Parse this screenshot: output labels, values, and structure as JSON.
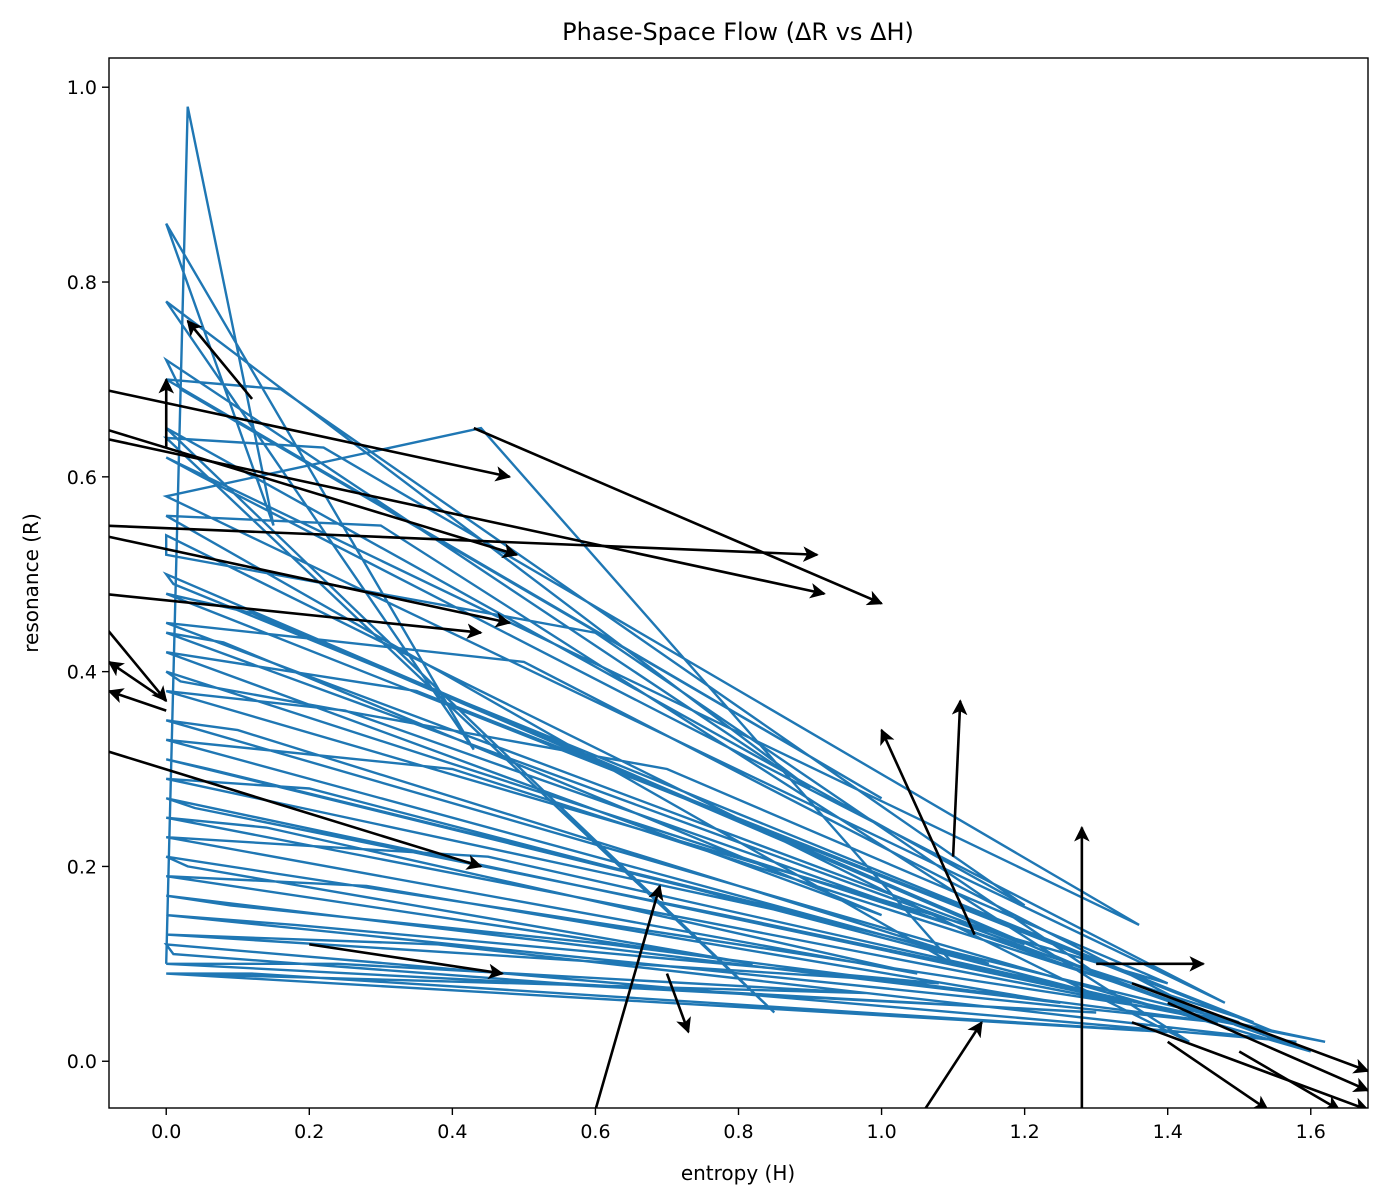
{
  "chart_data": {
    "type": "line",
    "title": "Phase-Space Flow (ΔR vs ΔH)",
    "xlabel": "entropy (H)",
    "ylabel": "resonance (R)",
    "xlim": [
      -0.08,
      1.68
    ],
    "ylim": [
      -0.048,
      1.03
    ],
    "xticks": [
      0.0,
      0.2,
      0.4,
      0.6,
      0.8,
      1.0,
      1.2,
      1.4,
      1.6
    ],
    "xtick_labels": [
      "0.0",
      "0.2",
      "0.4",
      "0.6",
      "0.8",
      "1.0",
      "1.2",
      "1.4",
      "1.6"
    ],
    "yticks": [
      0.0,
      0.2,
      0.4,
      0.6,
      0.8,
      1.0
    ],
    "ytick_labels": [
      "0.0",
      "0.2",
      "0.4",
      "0.6",
      "0.8",
      "1.0"
    ],
    "grid": false,
    "series_color": "#1f77b4",
    "arrow_color": "#000000",
    "series": [
      {
        "x": [
          0.0,
          0.03,
          0.15,
          0.0,
          0.43,
          0.0,
          0.9,
          0.0,
          0.02,
          1.0,
          0.0,
          0.16,
          1.2,
          0.0,
          0.85,
          0.0,
          0.22,
          1.36,
          0.0,
          0.05,
          1.48,
          0.0,
          0.44,
          1.1,
          0.0,
          0.3,
          1.43,
          0.0,
          0.0,
          0.6,
          1.3,
          0.0,
          0.01,
          1.55,
          0.0,
          0.12,
          1.2,
          0.0,
          0.5,
          1.45,
          0.0,
          0.08,
          1.0,
          0.0,
          0.35,
          1.52,
          0.0,
          0.02,
          0.7,
          1.4,
          0.0,
          0.25,
          1.6,
          0.0,
          0.1,
          1.15,
          0.0,
          0.4,
          1.5,
          0.0,
          0.06,
          0.95,
          0.0,
          0.2,
          1.35,
          0.0,
          0.04,
          0.78,
          1.62,
          0.0,
          0.14,
          1.05,
          0.0,
          0.45,
          1.42,
          0.0,
          0.03,
          0.82,
          0.0,
          0.28,
          1.25,
          0.0,
          0.09,
          0.62,
          1.47,
          0.0,
          0.18,
          1.08,
          0.0,
          0.38,
          1.58,
          0.0,
          0.01,
          0.55,
          1.3,
          0.0,
          0.24,
          0.98,
          0.0,
          0.12,
          1.4,
          0.0
        ],
        "y": [
          0.1,
          0.98,
          0.55,
          0.86,
          0.32,
          0.78,
          0.28,
          0.72,
          0.69,
          0.27,
          0.7,
          0.69,
          0.16,
          0.65,
          0.05,
          0.64,
          0.63,
          0.14,
          0.62,
          0.6,
          0.06,
          0.58,
          0.65,
          0.1,
          0.56,
          0.55,
          0.02,
          0.54,
          0.52,
          0.44,
          0.09,
          0.5,
          0.49,
          0.03,
          0.48,
          0.46,
          0.12,
          0.45,
          0.41,
          0.05,
          0.44,
          0.43,
          0.15,
          0.42,
          0.38,
          0.04,
          0.4,
          0.39,
          0.3,
          0.08,
          0.38,
          0.36,
          0.01,
          0.35,
          0.34,
          0.1,
          0.33,
          0.3,
          0.04,
          0.31,
          0.3,
          0.14,
          0.29,
          0.28,
          0.06,
          0.27,
          0.26,
          0.15,
          0.02,
          0.25,
          0.24,
          0.09,
          0.23,
          0.21,
          0.05,
          0.21,
          0.2,
          0.1,
          0.19,
          0.18,
          0.06,
          0.17,
          0.16,
          0.12,
          0.04,
          0.15,
          0.14,
          0.08,
          0.13,
          0.12,
          0.02,
          0.12,
          0.11,
          0.08,
          0.05,
          0.1,
          0.1,
          0.07,
          0.09,
          0.09,
          0.03,
          0.09
        ]
      }
    ],
    "arrows": [
      {
        "x0": -0.09,
        "y0": 0.69,
        "x1": 0.48,
        "y1": 0.6
      },
      {
        "x0": -0.09,
        "y0": 0.65,
        "x1": 0.49,
        "y1": 0.52
      },
      {
        "x0": -0.09,
        "y0": 0.64,
        "x1": 0.92,
        "y1": 0.48
      },
      {
        "x0": -0.09,
        "y0": 0.55,
        "x1": 0.91,
        "y1": 0.52
      },
      {
        "x0": -0.09,
        "y0": 0.54,
        "x1": 0.48,
        "y1": 0.45
      },
      {
        "x0": 0.43,
        "y0": 0.65,
        "x1": 1.0,
        "y1": 0.47
      },
      {
        "x0": -0.09,
        "y0": 0.48,
        "x1": 0.44,
        "y1": 0.44
      },
      {
        "x0": -0.09,
        "y0": 0.45,
        "x1": 0.0,
        "y1": 0.37
      },
      {
        "x0": 0.0,
        "y0": 0.37,
        "x1": -0.08,
        "y1": 0.41
      },
      {
        "x0": 0.0,
        "y0": 0.36,
        "x1": -0.08,
        "y1": 0.38
      },
      {
        "x0": -0.09,
        "y0": 0.32,
        "x1": 0.44,
        "y1": 0.2
      },
      {
        "x0": 0.12,
        "y0": 0.68,
        "x1": 0.03,
        "y1": 0.76
      },
      {
        "x0": 0.0,
        "y0": 0.63,
        "x1": 0.0,
        "y1": 0.7
      },
      {
        "x0": 1.13,
        "y0": 0.13,
        "x1": 1.0,
        "y1": 0.34
      },
      {
        "x0": 1.1,
        "y0": 0.21,
        "x1": 1.11,
        "y1": 0.37
      },
      {
        "x0": 1.28,
        "y0": -0.05,
        "x1": 1.28,
        "y1": 0.24
      },
      {
        "x0": 0.6,
        "y0": -0.05,
        "x1": 0.69,
        "y1": 0.18
      },
      {
        "x0": 1.06,
        "y0": -0.05,
        "x1": 1.14,
        "y1": 0.04
      },
      {
        "x0": 0.7,
        "y0": 0.09,
        "x1": 0.73,
        "y1": 0.03
      },
      {
        "x0": 1.3,
        "y0": 0.1,
        "x1": 1.45,
        "y1": 0.1
      },
      {
        "x0": 1.35,
        "y0": 0.08,
        "x1": 1.68,
        "y1": -0.01
      },
      {
        "x0": 1.4,
        "y0": 0.06,
        "x1": 1.68,
        "y1": -0.03
      },
      {
        "x0": 1.35,
        "y0": 0.04,
        "x1": 1.68,
        "y1": -0.05
      },
      {
        "x0": 1.4,
        "y0": 0.02,
        "x1": 1.54,
        "y1": -0.05
      },
      {
        "x0": 1.5,
        "y0": 0.01,
        "x1": 1.64,
        "y1": -0.05
      },
      {
        "x0": 0.2,
        "y0": 0.12,
        "x1": 0.47,
        "y1": 0.09
      }
    ]
  }
}
